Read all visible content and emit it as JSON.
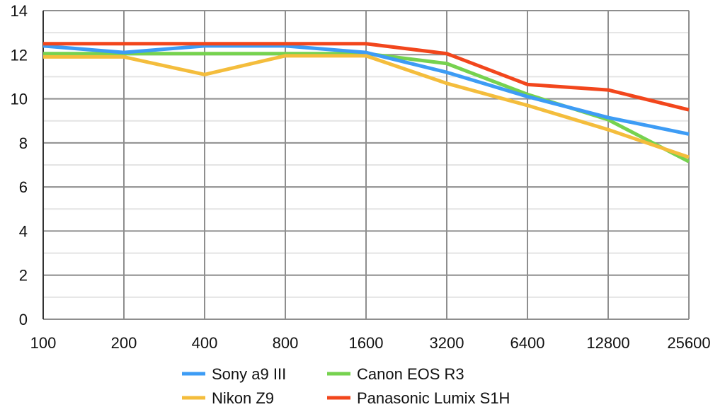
{
  "chart_data": {
    "type": "line",
    "title": "",
    "xlabel": "",
    "ylabel": "",
    "categories": [
      "100",
      "200",
      "400",
      "800",
      "1600",
      "3200",
      "6400",
      "12800",
      "25600"
    ],
    "ylim": [
      0,
      14
    ],
    "yticks": [
      "0",
      "2",
      "4",
      "6",
      "8",
      "10",
      "12",
      "14"
    ],
    "grid": true,
    "legend_position": "bottom",
    "series": [
      {
        "name": "Sony a9 III",
        "color": "#3d9cf5",
        "values": [
          12.4,
          12.1,
          12.4,
          12.4,
          12.1,
          11.2,
          10.1,
          9.15,
          8.4
        ]
      },
      {
        "name": "Nikon Z9",
        "color": "#f4bd3c",
        "values": [
          11.9,
          11.9,
          11.1,
          11.95,
          11.95,
          10.7,
          9.7,
          8.6,
          7.35
        ]
      },
      {
        "name": "Canon EOS R3",
        "color": "#76d24f",
        "values": [
          12.05,
          12.05,
          12.05,
          12.05,
          12.05,
          11.6,
          10.2,
          9.05,
          7.15
        ]
      },
      {
        "name": "Panasonic Lumix S1H",
        "color": "#f2461c",
        "values": [
          12.5,
          12.5,
          12.5,
          12.5,
          12.5,
          12.05,
          10.65,
          10.4,
          9.5
        ]
      }
    ]
  }
}
